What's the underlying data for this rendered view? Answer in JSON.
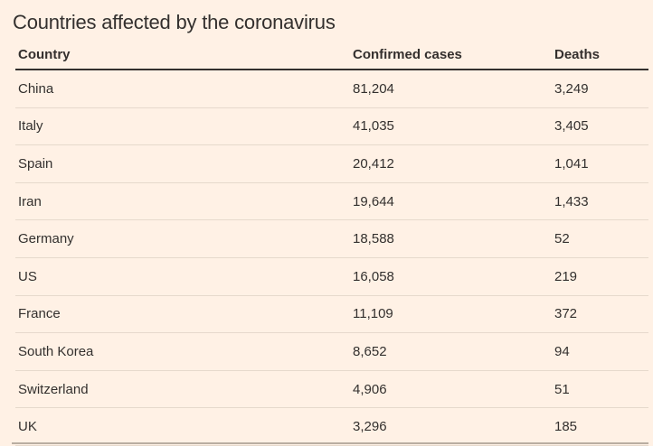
{
  "title": "Countries affected by the coronavirus",
  "colors": {
    "background": "#fff1e5",
    "text": "#33302e",
    "header_rule": "#33302e",
    "row_separator": "#e6d9cc",
    "bottom_rule": "#b9aea2"
  },
  "table": {
    "columns": [
      "Country",
      "Confirmed cases",
      "Deaths"
    ],
    "rows": [
      [
        "China",
        "81,204",
        "3,249"
      ],
      [
        "Italy",
        "41,035",
        "3,405"
      ],
      [
        "Spain",
        "20,412",
        "1,041"
      ],
      [
        "Iran",
        "19,644",
        "1,433"
      ],
      [
        "Germany",
        "18,588",
        "52"
      ],
      [
        "US",
        "16,058",
        "219"
      ],
      [
        "France",
        "11,109",
        "372"
      ],
      [
        "South Korea",
        "8,652",
        "94"
      ],
      [
        "Switzerland",
        "4,906",
        "51"
      ],
      [
        "UK",
        "3,296",
        "185"
      ]
    ]
  },
  "chart_data": {
    "type": "table",
    "title": "Countries affected by the coronavirus",
    "columns": [
      "Country",
      "Confirmed cases",
      "Deaths"
    ],
    "rows": [
      {
        "country": "China",
        "confirmed_cases": 81204,
        "deaths": 3249
      },
      {
        "country": "Italy",
        "confirmed_cases": 41035,
        "deaths": 3405
      },
      {
        "country": "Spain",
        "confirmed_cases": 20412,
        "deaths": 1041
      },
      {
        "country": "Iran",
        "confirmed_cases": 19644,
        "deaths": 1433
      },
      {
        "country": "Germany",
        "confirmed_cases": 18588,
        "deaths": 52
      },
      {
        "country": "US",
        "confirmed_cases": 16058,
        "deaths": 219
      },
      {
        "country": "France",
        "confirmed_cases": 11109,
        "deaths": 372
      },
      {
        "country": "South Korea",
        "confirmed_cases": 8652,
        "deaths": 94
      },
      {
        "country": "Switzerland",
        "confirmed_cases": 4906,
        "deaths": 51
      },
      {
        "country": "UK",
        "confirmed_cases": 3296,
        "deaths": 185
      }
    ]
  }
}
